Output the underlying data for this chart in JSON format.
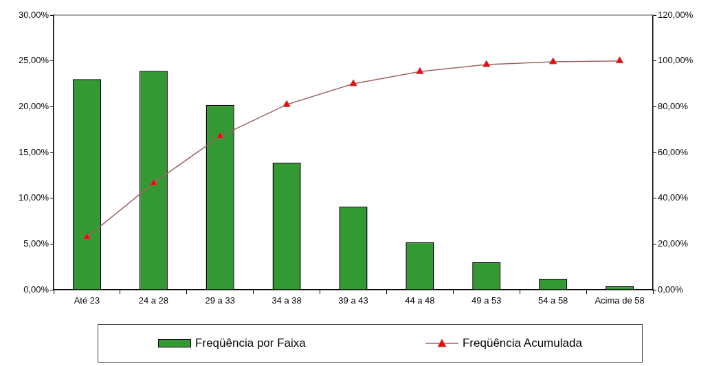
{
  "chart_data": {
    "type": "bar",
    "categories": [
      "Até 23",
      "24 a 28",
      "29 a 33",
      "34 a 38",
      "39 a 43",
      "44 a 48",
      "49 a 53",
      "54 a 58",
      "Acima de 58"
    ],
    "series": [
      {
        "name": "Freqüência por Faixa",
        "color": "#339933",
        "values": [
          23.0,
          23.9,
          20.2,
          13.9,
          9.1,
          5.2,
          3.0,
          1.2,
          0.4
        ]
      },
      {
        "name": "Freqüência Acumulada",
        "type": "line",
        "axis": "y2",
        "color": "#9c6464",
        "marker": "triangle",
        "values": [
          23.0,
          46.6,
          67.1,
          80.9,
          90.0,
          95.3,
          98.4,
          99.6,
          100.0
        ]
      }
    ],
    "ylim": [
      0,
      30
    ],
    "yticks": [
      {
        "value": 0,
        "label": "0,00%"
      },
      {
        "value": 5,
        "label": "5,00%"
      },
      {
        "value": 10,
        "label": "10,00%"
      },
      {
        "value": 15,
        "label": "15,00%"
      },
      {
        "value": 20,
        "label": "20,00%"
      },
      {
        "value": 25,
        "label": "25,00%"
      },
      {
        "value": 30,
        "label": "30,00%"
      }
    ],
    "y2lim": [
      0,
      120
    ],
    "y2ticks": [
      {
        "value": 0,
        "label": "0,00%"
      },
      {
        "value": 20,
        "label": "20,00%"
      },
      {
        "value": 40,
        "label": "40,00%"
      },
      {
        "value": 60,
        "label": "60,00%"
      },
      {
        "value": 80,
        "label": "80,00%"
      },
      {
        "value": 100,
        "label": "100,00%"
      },
      {
        "value": 120,
        "label": "120,00%"
      }
    ],
    "grid": false,
    "legend": "bottom"
  }
}
